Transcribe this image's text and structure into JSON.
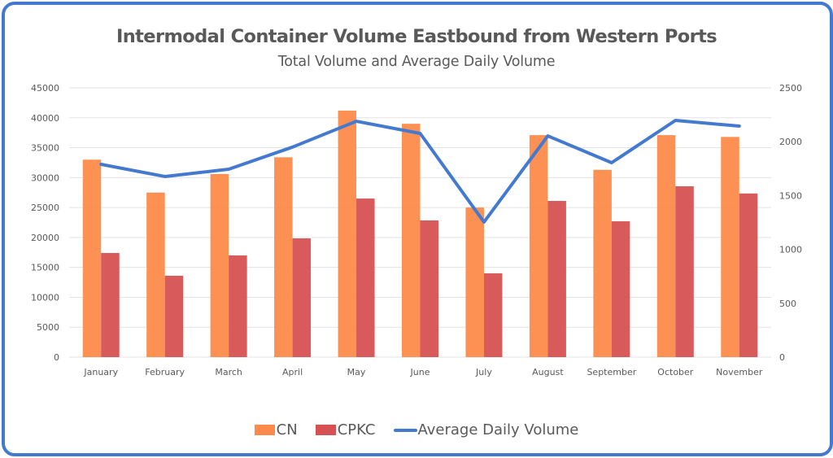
{
  "chart_data": {
    "type": "bar",
    "title": "Intermodal Container Volume Eastbound from Western Ports",
    "subtitle": "Total Volume and Average Daily Volume",
    "xlabel": "",
    "ylabel": "",
    "categories": [
      "January",
      "February",
      "March",
      "April",
      "May",
      "June",
      "July",
      "August",
      "September",
      "October",
      "November"
    ],
    "series": [
      {
        "name": "CN",
        "type": "bar",
        "axis": "left",
        "color": "#fd8a4a",
        "values": [
          33000,
          27500,
          30600,
          33400,
          41200,
          39000,
          25000,
          37100,
          31300,
          37100,
          36800
        ]
      },
      {
        "name": "CPKC",
        "type": "bar",
        "axis": "left",
        "color": "#d65151",
        "values": [
          17400,
          13600,
          17000,
          19850,
          26500,
          22850,
          14000,
          26100,
          22700,
          28550,
          27350
        ]
      },
      {
        "name": "Average Daily Volume",
        "type": "line",
        "axis": "right",
        "color": "#4479d0",
        "values": [
          1790,
          1677,
          1745,
          1950,
          2190,
          2077,
          1254,
          2054,
          1805,
          2198,
          2145
        ]
      }
    ],
    "ylim": [
      0,
      45000
    ],
    "yticks": [
      "0",
      "5000",
      "10000",
      "15000",
      "20000",
      "25000",
      "30000",
      "35000",
      "40000",
      "45000"
    ],
    "y2lim": [
      0,
      2500
    ],
    "y2ticks": [
      "0",
      "500",
      "1000",
      "1500",
      "2000",
      "2500"
    ],
    "grid": true,
    "legend": "bottom"
  },
  "frame_color": "#4479d0"
}
